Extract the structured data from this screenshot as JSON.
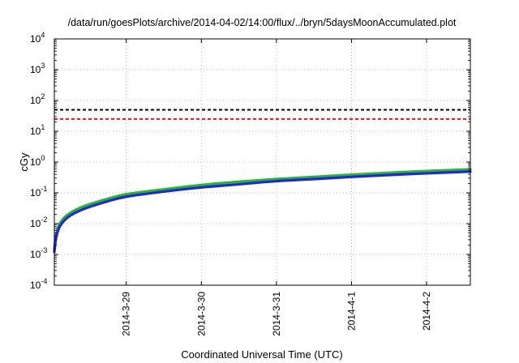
{
  "chart_data": {
    "type": "line",
    "title": "/data/run/goesPlots/archive/2014-04-02/14:00/flux/../bryn/5daysMoonAccumulated.plot",
    "xlabel": "Coordinated Universal Time (UTC)",
    "ylabel": "cGy",
    "y_scale": "log",
    "ylim": [
      0.0001,
      10000
    ],
    "xlim": [
      "2014-03-28T01:00",
      "2014-04-02T14:00"
    ],
    "grid": true,
    "x_ticks": [
      {
        "value": "2014-03-29T00:00",
        "label": "2014-3-29"
      },
      {
        "value": "2014-03-30T00:00",
        "label": "2014-3-30"
      },
      {
        "value": "2014-03-31T00:00",
        "label": "2014-3-31"
      },
      {
        "value": "2014-04-01T00:00",
        "label": "2014-4-1"
      },
      {
        "value": "2014-04-02T00:00",
        "label": "2014-4-2"
      }
    ],
    "y_ticks": [
      {
        "value": 0.0001,
        "base": "10",
        "exp": "-4"
      },
      {
        "value": 0.001,
        "base": "10",
        "exp": "-3"
      },
      {
        "value": 0.01,
        "base": "10",
        "exp": "-2"
      },
      {
        "value": 0.1,
        "base": "10",
        "exp": "-1"
      },
      {
        "value": 1,
        "base": "10",
        "exp": "0"
      },
      {
        "value": 10,
        "base": "10",
        "exp": "1"
      },
      {
        "value": 100,
        "base": "10",
        "exp": "2"
      },
      {
        "value": 1000,
        "base": "10",
        "exp": "3"
      },
      {
        "value": 10000,
        "base": "10",
        "exp": "4"
      }
    ],
    "series": [
      {
        "color": "#22bb22",
        "style": "solid",
        "x": [
          "2014-03-28T01:00",
          "2014-03-28T01:30",
          "2014-03-28T02:30",
          "2014-03-28T04:00",
          "2014-03-28T06:00",
          "2014-03-28T09:00",
          "2014-03-28T13:00",
          "2014-03-28T18:00",
          "2014-03-29T00:00",
          "2014-03-29T12:00",
          "2014-03-30T00:00",
          "2014-03-30T12:00",
          "2014-03-31T00:00",
          "2014-03-31T12:00",
          "2014-04-01T00:00",
          "2014-04-01T12:00",
          "2014-04-02T00:00",
          "2014-04-02T14:00"
        ],
        "y": [
          0.0015,
          0.004,
          0.009,
          0.015,
          0.022,
          0.032,
          0.045,
          0.064,
          0.09,
          0.13,
          0.18,
          0.23,
          0.28,
          0.33,
          0.39,
          0.45,
          0.51,
          0.58
        ]
      },
      {
        "color": "#2222ee",
        "style": "solid",
        "x": [
          "2014-03-28T01:00",
          "2014-03-28T01:30",
          "2014-03-28T02:30",
          "2014-03-28T04:00",
          "2014-03-28T06:00",
          "2014-03-28T09:00",
          "2014-03-28T13:00",
          "2014-03-28T18:00",
          "2014-03-29T00:00",
          "2014-03-29T12:00",
          "2014-03-30T00:00",
          "2014-03-30T12:00",
          "2014-03-31T00:00",
          "2014-03-31T12:00",
          "2014-04-01T00:00",
          "2014-04-01T12:00",
          "2014-04-02T00:00",
          "2014-04-02T14:00"
        ],
        "y": [
          0.0012,
          0.0032,
          0.0072,
          0.012,
          0.018,
          0.026,
          0.037,
          0.053,
          0.075,
          0.11,
          0.15,
          0.19,
          0.24,
          0.28,
          0.33,
          0.38,
          0.43,
          0.49
        ]
      },
      {
        "color": "#000000",
        "style": "dashed",
        "x": [
          "2014-03-28T01:00",
          "2014-04-02T14:00"
        ],
        "y": [
          50,
          50
        ]
      },
      {
        "color": "#ee1111",
        "style": "dashed",
        "x": [
          "2014-03-28T01:00",
          "2014-04-02T14:00"
        ],
        "y": [
          25,
          25
        ]
      }
    ]
  }
}
